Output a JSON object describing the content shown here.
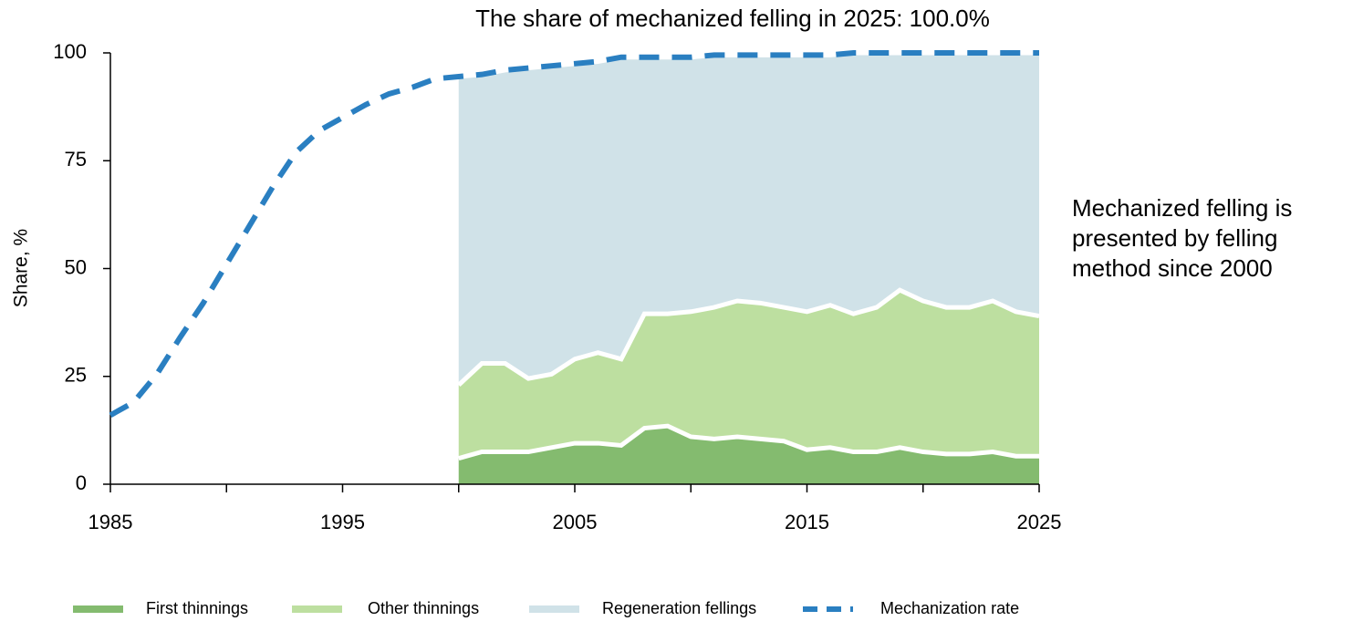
{
  "chart_data": {
    "type": "area",
    "title": "The share of mechanized felling in 2025: 100.0%",
    "annotation": "Mechanized felling is presented by felling method since 2000",
    "y_label": "Share, %",
    "x": [
      1985,
      1986,
      1987,
      1988,
      1989,
      1990,
      1991,
      1992,
      1993,
      1994,
      1995,
      1996,
      1997,
      1998,
      1999,
      2000,
      2001,
      2002,
      2003,
      2004,
      2005,
      2006,
      2007,
      2008,
      2009,
      2010,
      2011,
      2012,
      2013,
      2014,
      2015,
      2016,
      2017,
      2018,
      2019,
      2020,
      2021,
      2022,
      2023,
      2024,
      2025
    ],
    "xlim": [
      1985,
      2025
    ],
    "xticks": [
      1985,
      1995,
      2005,
      2015,
      2025
    ],
    "xminorticks": [
      1990,
      2000,
      2010,
      2020
    ],
    "ylim": [
      0,
      100
    ],
    "yticks": [
      0,
      25,
      50,
      75,
      100
    ],
    "series": [
      {
        "name": "First thinnings",
        "color": "#84bb6f",
        "stack": true,
        "values": [
          null,
          null,
          null,
          null,
          null,
          null,
          null,
          null,
          null,
          null,
          null,
          null,
          null,
          null,
          null,
          6,
          7.5,
          7.5,
          7.5,
          8.5,
          9.5,
          9.5,
          9,
          13,
          13.5,
          11,
          10.5,
          11,
          10.5,
          10,
          8,
          8.5,
          7.5,
          7.5,
          8.5,
          7.5,
          7,
          7,
          7.5,
          6.5,
          6.5
        ]
      },
      {
        "name": "Other thinnings",
        "color": "#bddfa0",
        "stack": true,
        "values": [
          null,
          null,
          null,
          null,
          null,
          null,
          null,
          null,
          null,
          null,
          null,
          null,
          null,
          null,
          null,
          17,
          20.5,
          20.5,
          17,
          17,
          19.5,
          21,
          20,
          26.5,
          26,
          29,
          30.5,
          31.5,
          31.5,
          31,
          32,
          33,
          32,
          33.5,
          36.5,
          35,
          34,
          34,
          35,
          33.5,
          32.5
        ]
      },
      {
        "name": "Regeneration fellings",
        "color": "#d0e2e8",
        "stack": true,
        "values": [
          null,
          null,
          null,
          null,
          null,
          null,
          null,
          null,
          null,
          null,
          null,
          null,
          null,
          null,
          null,
          71.5,
          67,
          68,
          72,
          71.5,
          68.5,
          67.5,
          70,
          59.5,
          59.5,
          59,
          58.5,
          57,
          57.5,
          58.5,
          59.5,
          58,
          60.5,
          59,
          55,
          57.5,
          59,
          59,
          57.5,
          60,
          61
        ]
      },
      {
        "name": "Mechanization rate",
        "color": "#2a7fc1",
        "dashed": true,
        "values": [
          16,
          19,
          25.5,
          34,
          42,
          51,
          60,
          69,
          77,
          82,
          85,
          88,
          90.5,
          92,
          94,
          94.5,
          95,
          96,
          96.5,
          97,
          97.5,
          98,
          99,
          99,
          99,
          99,
          99.5,
          99.5,
          99.5,
          99.5,
          99.5,
          99.5,
          100,
          100,
          100,
          100,
          100,
          100,
          100,
          100,
          100
        ]
      }
    ]
  }
}
